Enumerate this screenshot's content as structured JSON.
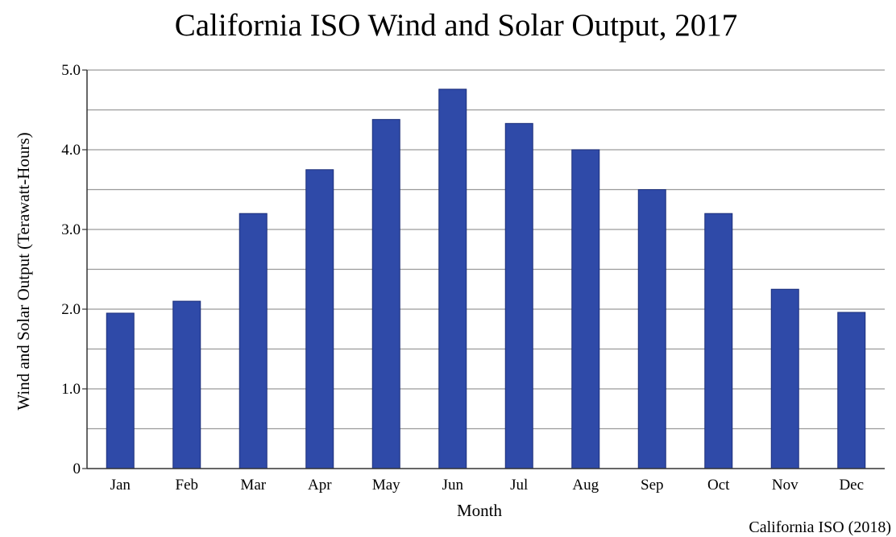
{
  "chart_data": {
    "type": "bar",
    "title": "California ISO Wind and Solar Output, 2017",
    "xlabel": "Month",
    "ylabel": "Wind and Solar Output (Terawatt-Hours)",
    "source": "California ISO (2018)",
    "categories": [
      "Jan",
      "Feb",
      "Mar",
      "Apr",
      "May",
      "Jun",
      "Jul",
      "Aug",
      "Sep",
      "Oct",
      "Nov",
      "Dec"
    ],
    "values": [
      1.95,
      2.1,
      3.2,
      3.75,
      4.38,
      4.76,
      4.33,
      4.0,
      3.5,
      3.2,
      2.25,
      1.96
    ],
    "ylim": [
      0,
      5
    ],
    "yticks": [
      0,
      1,
      2,
      3,
      4,
      5
    ],
    "ytick_labels": [
      "0",
      "1.0",
      "2.0",
      "3.0",
      "4.0",
      "5.0"
    ],
    "grid": "horizontal",
    "bar_color": "#2f4aa8",
    "bar_edge_color": "#1c2f7a"
  }
}
